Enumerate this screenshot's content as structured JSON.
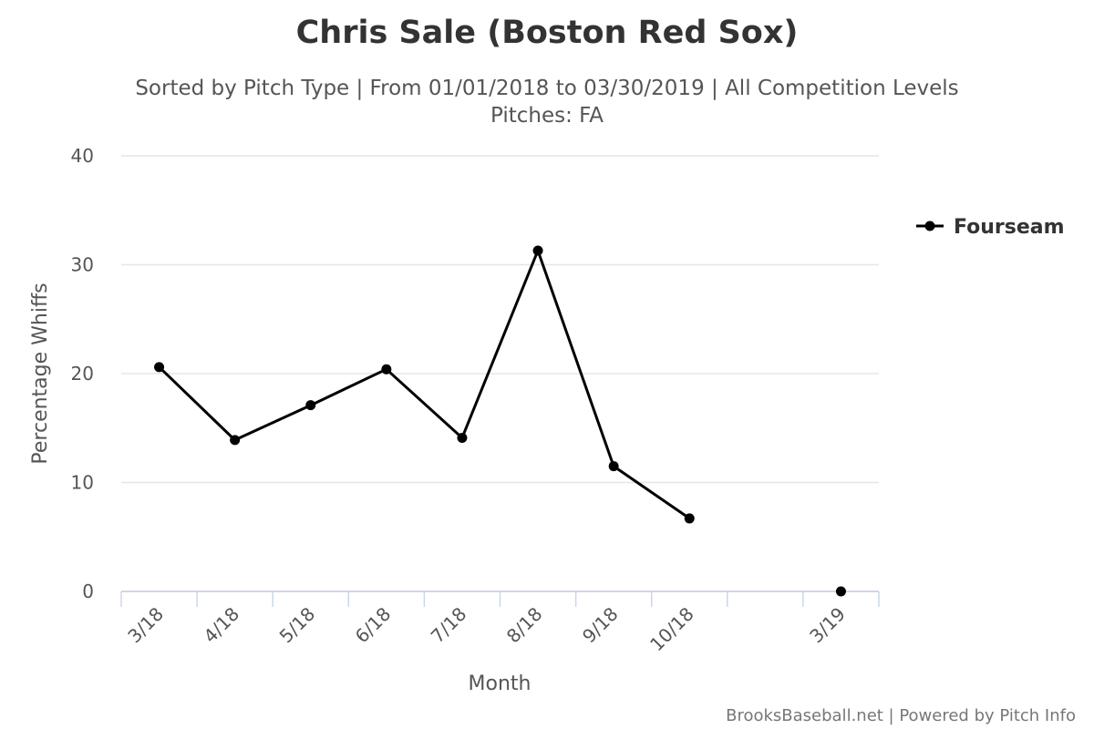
{
  "chart_data": {
    "type": "line",
    "title": "Chris Sale (Boston Red Sox)",
    "subtitle_line1": "Sorted by Pitch Type | From 01/01/2018 to 03/30/2019 | All Competition Levels",
    "subtitle_line2": "Pitches: FA",
    "xlabel": "Month",
    "ylabel": "Percentage Whiffs",
    "categories": [
      "3/18",
      "4/18",
      "5/18",
      "6/18",
      "7/18",
      "8/18",
      "9/18",
      "10/18",
      "",
      "3/19"
    ],
    "ylim": [
      0,
      40
    ],
    "yticks": [
      0,
      10,
      20,
      30,
      40
    ],
    "grid": true,
    "legend_position": "right",
    "series": [
      {
        "name": "Fourseam",
        "color": "#000000",
        "values": [
          20.6,
          13.9,
          17.1,
          20.4,
          14.1,
          31.3,
          11.5,
          6.7,
          null,
          0
        ]
      }
    ]
  },
  "credits": "BrooksBaseball.net | Powered by Pitch Info",
  "colors": {
    "grid": "#e6e6e6",
    "axis": "#ccd6eb",
    "series": "#000000"
  }
}
